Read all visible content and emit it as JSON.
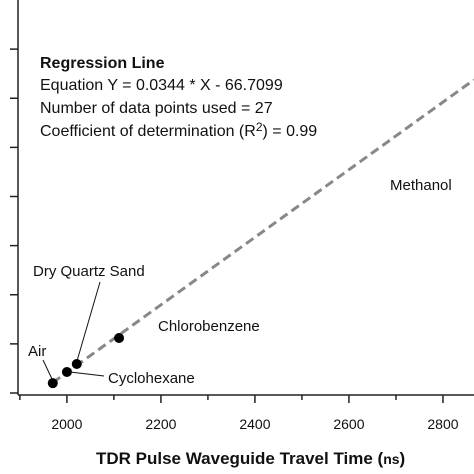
{
  "chart_data": {
    "type": "scatter",
    "xlabel": [
      "TDR Pulse Waveguide Travel Time (",
      "ns",
      ")"
    ],
    "xlim": [
      1896,
      2866
    ],
    "xticks": [
      2000,
      2200,
      2400,
      2600,
      2800
    ],
    "xminorticks": [
      1900,
      2100,
      2300,
      2500,
      2700
    ],
    "ylim": [
      0,
      40
    ],
    "yticks": [
      0,
      5,
      10,
      15,
      20,
      25,
      30,
      35
    ],
    "points": {
      "labels": [
        "Air",
        "Cyclohexane",
        "Dry Quartz Sand",
        "Chlorobenzene"
      ],
      "x": [
        1970,
        2000,
        2021,
        2111
      ],
      "y": [
        1.0,
        2.14,
        2.95,
        5.6
      ],
      "color": "#000000"
    },
    "regression": {
      "x": [
        1970,
        2866
      ],
      "y": [
        1.06,
        31.88
      ],
      "color": "#888888"
    },
    "annotation": "Methanol",
    "legend": {
      "title": "Regression Line",
      "lines": [
        "Equation Y = 0.0344 * X - 66.7099",
        "Number of data points used = 27"
      ],
      "r2": [
        "Coefficient of determination (R",
        "2",
        ") = 0.99"
      ]
    }
  }
}
